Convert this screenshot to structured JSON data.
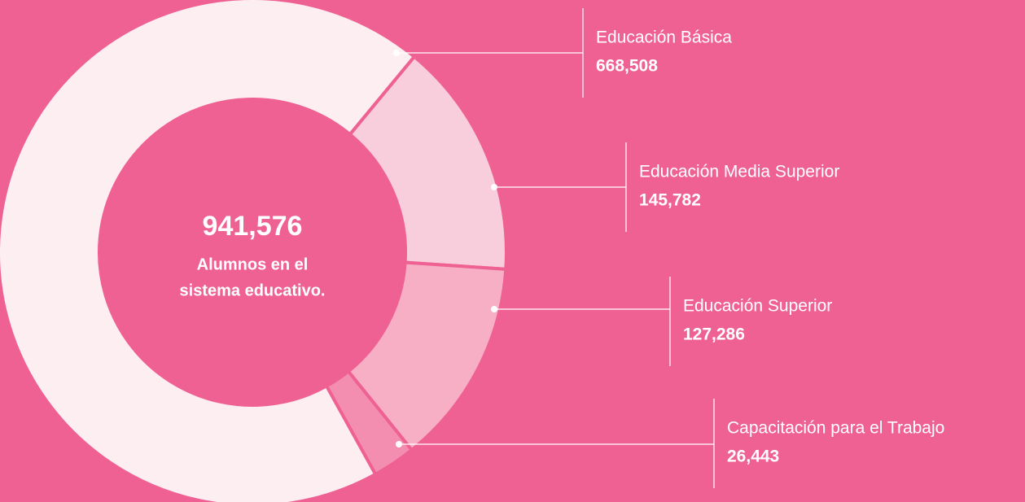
{
  "chart_data": {
    "type": "donut",
    "categories": [
      "Educación Básica",
      "Educación Media Superior",
      "Educación Superior",
      "Capacitación para el Trabajo"
    ],
    "values": [
      668508,
      145782,
      127286,
      26443
    ],
    "value_labels": [
      "668,508",
      "145,782",
      "127,286",
      "26,443"
    ],
    "colors": [
      "#fdeef2",
      "#f9cedc",
      "#f7afc6",
      "#f38eb0"
    ],
    "background": "#ef6192",
    "center_value": "941,576",
    "center_lines": [
      "Alumnos en el",
      "sistema educativo."
    ]
  }
}
